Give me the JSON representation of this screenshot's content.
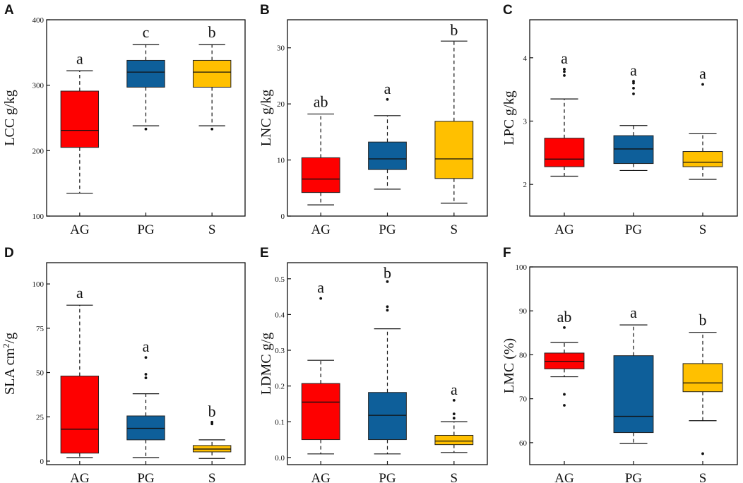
{
  "figure": {
    "categories": [
      "AG",
      "PG",
      "S"
    ],
    "colors": {
      "AG": "#fe0000",
      "PG": "#0e5f9a",
      "S": "#ffc000"
    }
  },
  "chart_data": [
    {
      "id": "A",
      "type": "box",
      "panel_label": "A",
      "ylabel": "LCC g/kg",
      "ylim": [
        100,
        400
      ],
      "yticks": [
        100,
        200,
        300,
        400
      ],
      "categories": [
        "AG",
        "PG",
        "S"
      ],
      "boxes": [
        {
          "category": "AG",
          "q1": 205,
          "median": 231,
          "q3": 291,
          "whisker_low": 135,
          "whisker_high": 322,
          "outliers": [],
          "letter": "a"
        },
        {
          "category": "PG",
          "q1": 297,
          "median": 320,
          "q3": 338,
          "whisker_low": 238,
          "whisker_high": 362,
          "outliers": [
            233
          ],
          "letter": "c"
        },
        {
          "category": "S",
          "q1": 297,
          "median": 320,
          "q3": 338,
          "whisker_low": 238,
          "whisker_high": 362,
          "outliers": [
            233
          ],
          "letter": "b"
        }
      ]
    },
    {
      "id": "B",
      "type": "box",
      "panel_label": "B",
      "ylabel": "LNC g/kg",
      "ylim": [
        0,
        35
      ],
      "yticks": [
        0,
        10,
        20,
        30
      ],
      "categories": [
        "AG",
        "PG",
        "S"
      ],
      "boxes": [
        {
          "category": "AG",
          "q1": 4.2,
          "median": 6.6,
          "q3": 10.4,
          "whisker_low": 2.0,
          "whisker_high": 18.2,
          "outliers": [],
          "letter": "ab"
        },
        {
          "category": "PG",
          "q1": 8.3,
          "median": 10.2,
          "q3": 13.2,
          "whisker_low": 4.8,
          "whisker_high": 17.9,
          "outliers": [
            20.8
          ],
          "letter": "a"
        },
        {
          "category": "S",
          "q1": 6.7,
          "median": 10.2,
          "q3": 16.9,
          "whisker_low": 2.3,
          "whisker_high": 31.2,
          "outliers": [],
          "letter": "b"
        }
      ]
    },
    {
      "id": "C",
      "type": "box",
      "panel_label": "C",
      "ylabel": "LPC g/kg",
      "ylim": [
        1.5,
        4.6
      ],
      "yticks": [
        2,
        3,
        4
      ],
      "categories": [
        "AG",
        "PG",
        "S"
      ],
      "boxes": [
        {
          "category": "AG",
          "q1": 2.28,
          "median": 2.4,
          "q3": 2.73,
          "whisker_low": 2.13,
          "whisker_high": 3.35,
          "outliers": [
            3.72,
            3.78,
            3.82
          ],
          "letter": "a"
        },
        {
          "category": "PG",
          "q1": 2.33,
          "median": 2.56,
          "q3": 2.77,
          "whisker_low": 2.22,
          "whisker_high": 2.93,
          "outliers": [
            3.43,
            3.52,
            3.6,
            3.63
          ],
          "letter": "a"
        },
        {
          "category": "S",
          "q1": 2.28,
          "median": 2.35,
          "q3": 2.52,
          "whisker_low": 2.08,
          "whisker_high": 2.8,
          "outliers": [
            3.58
          ],
          "letter": "a"
        }
      ]
    },
    {
      "id": "D",
      "type": "box",
      "panel_label": "D",
      "ylabel_main": "SLA cm",
      "ylabel_sup": "2",
      "ylabel_tail": "/g",
      "ylim": [
        -2,
        112
      ],
      "yticks": [
        0,
        25,
        50,
        75,
        100
      ],
      "categories": [
        "AG",
        "PG",
        "S"
      ],
      "boxes": [
        {
          "category": "AG",
          "q1": 4.5,
          "median": 18,
          "q3": 48,
          "whisker_low": 2,
          "whisker_high": 88,
          "outliers": [],
          "letter": "a"
        },
        {
          "category": "PG",
          "q1": 12,
          "median": 18.5,
          "q3": 25.5,
          "whisker_low": 2,
          "whisker_high": 38,
          "outliers": [
            47,
            49,
            58.5
          ],
          "letter": "a"
        },
        {
          "category": "S",
          "q1": 5.2,
          "median": 6.8,
          "q3": 8.8,
          "whisker_low": 1.5,
          "whisker_high": 12,
          "outliers": [
            21,
            22
          ],
          "letter": "b"
        }
      ]
    },
    {
      "id": "E",
      "type": "box",
      "panel_label": "E",
      "ylabel": "LDMC g/g",
      "ylim": [
        -0.02,
        0.545
      ],
      "yticks": [
        0.0,
        0.1,
        0.2,
        0.3,
        0.4,
        0.5
      ],
      "categories": [
        "AG",
        "PG",
        "S"
      ],
      "boxes": [
        {
          "category": "AG",
          "q1": 0.05,
          "median": 0.155,
          "q3": 0.207,
          "whisker_low": 0.01,
          "whisker_high": 0.272,
          "outliers": [
            0.445
          ],
          "letter": "a"
        },
        {
          "category": "PG",
          "q1": 0.05,
          "median": 0.118,
          "q3": 0.182,
          "whisker_low": 0.01,
          "whisker_high": 0.36,
          "outliers": [
            0.412,
            0.422,
            0.492
          ],
          "letter": "b"
        },
        {
          "category": "S",
          "q1": 0.036,
          "median": 0.046,
          "q3": 0.062,
          "whisker_low": 0.014,
          "whisker_high": 0.1,
          "outliers": [
            0.11,
            0.122,
            0.16
          ],
          "letter": "a"
        }
      ]
    },
    {
      "id": "F",
      "type": "box",
      "panel_label": "F",
      "ylabel": "LMC (%)",
      "ylim": [
        55,
        100
      ],
      "yticks": [
        60,
        70,
        80,
        90,
        100
      ],
      "categories": [
        "AG",
        "PG",
        "S"
      ],
      "boxes": [
        {
          "category": "AG",
          "q1": 76.8,
          "median": 78.5,
          "q3": 80.4,
          "whisker_low": 75.0,
          "whisker_high": 82.8,
          "outliers": [
            68.5,
            71.0,
            86.2
          ],
          "letter": "ab"
        },
        {
          "category": "PG",
          "q1": 62.3,
          "median": 66.0,
          "q3": 79.8,
          "whisker_low": 59.8,
          "whisker_high": 86.8,
          "outliers": [],
          "letter": "a"
        },
        {
          "category": "S",
          "q1": 71.6,
          "median": 73.6,
          "q3": 78.0,
          "whisker_low": 65.0,
          "whisker_high": 85.1,
          "outliers": [
            57.5
          ],
          "letter": "b"
        }
      ]
    }
  ]
}
